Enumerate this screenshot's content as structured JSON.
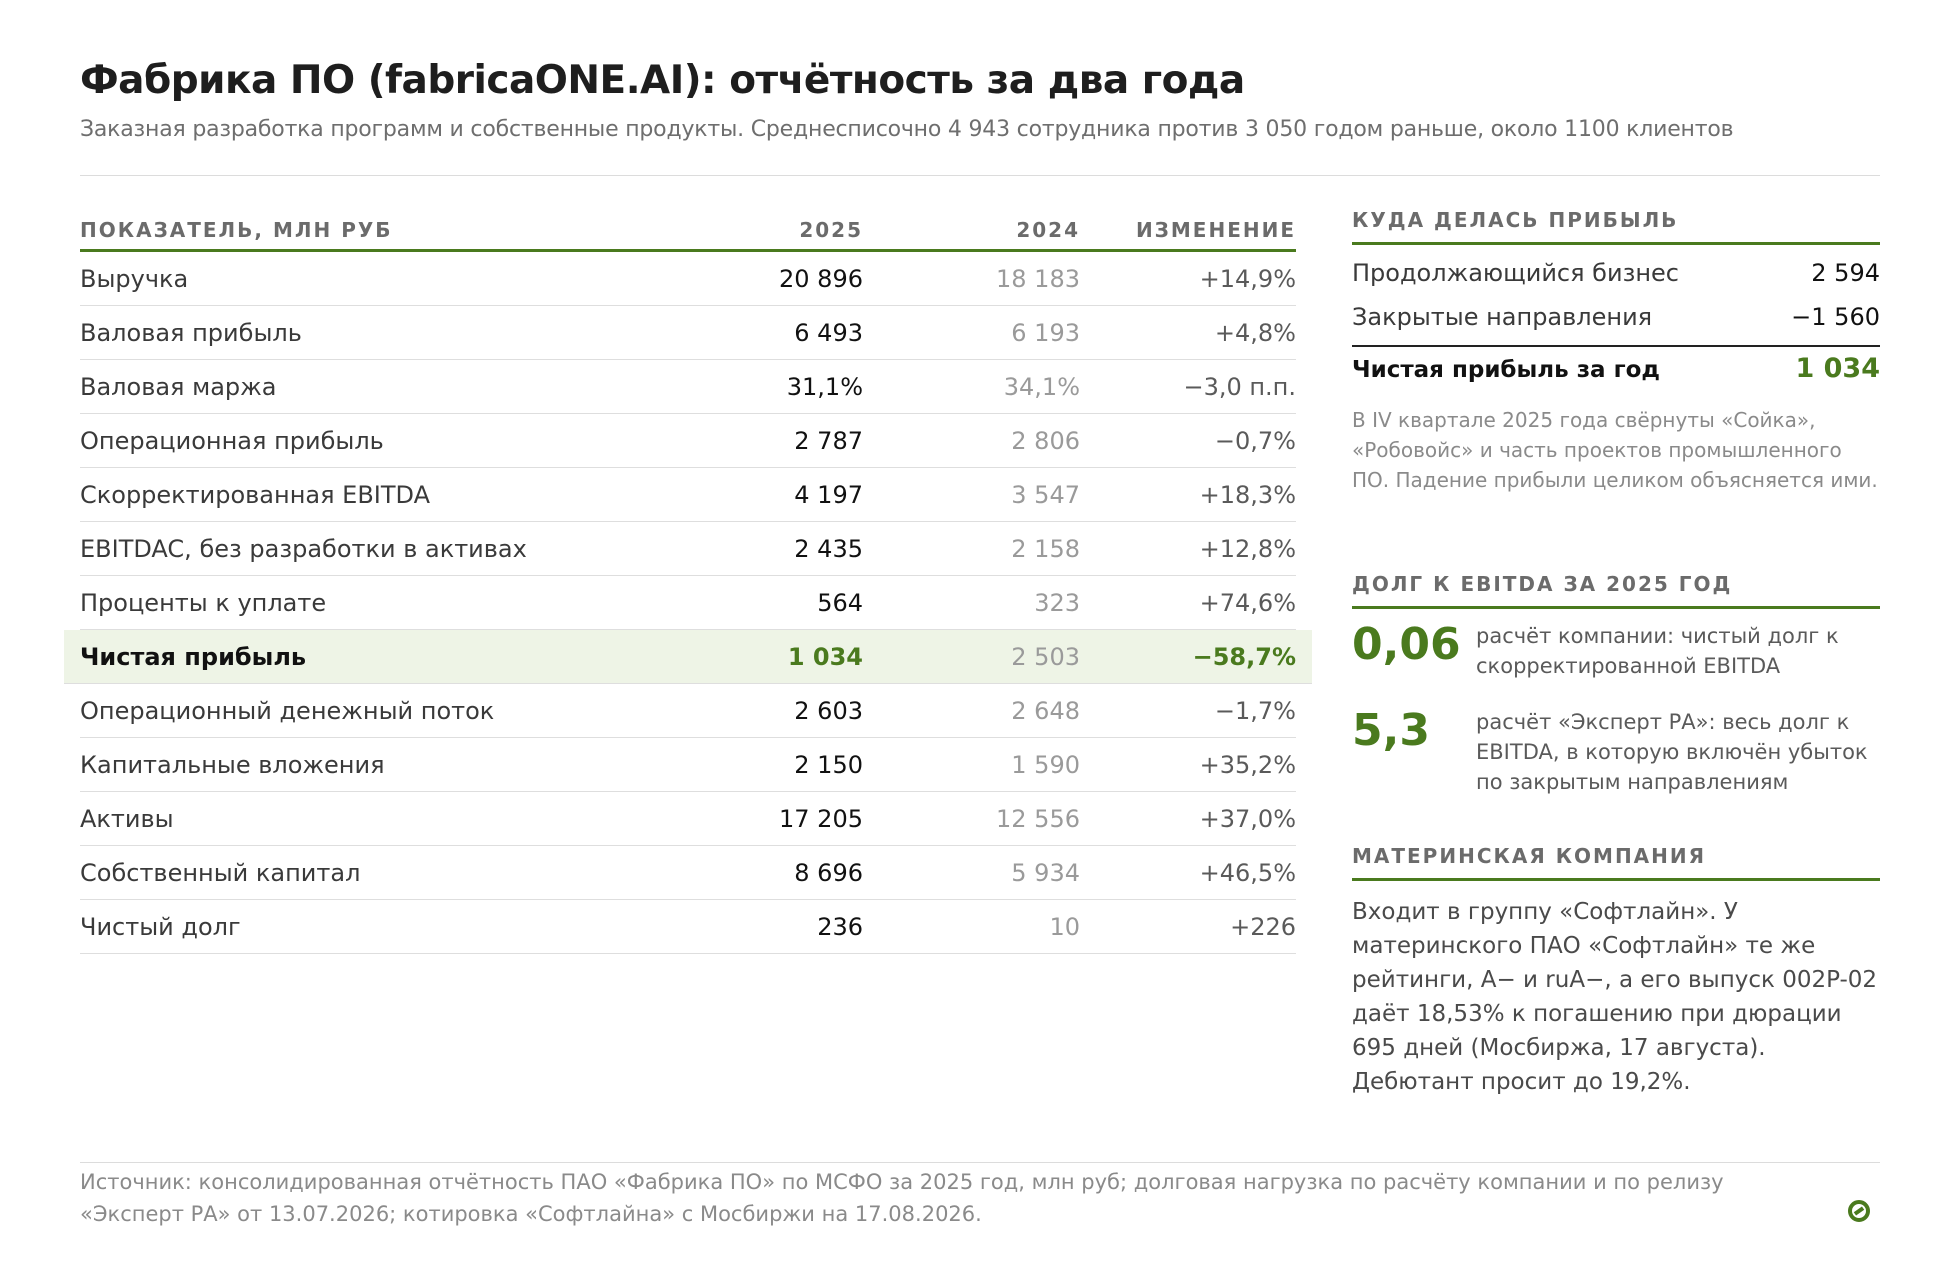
{
  "header": {
    "title": "Фабрика ПО (fabricaONE.AI): отчётность за два года",
    "subtitle": "Заказная разработка программ и собственные продукты. Среднесписочно 4 943 сотрудника против 3 050 годом раньше, около 1100 клиентов"
  },
  "table": {
    "headers": [
      "ПОКАЗАТЕЛЬ, МЛН РУБ",
      "2025",
      "2024",
      "ИЗМЕНЕНИЕ"
    ],
    "rows": [
      {
        "name": "Выручка",
        "y2025": "20 896",
        "y2024": "18 183",
        "change": "+14,9%"
      },
      {
        "name": "Валовая прибыль",
        "y2025": "6 493",
        "y2024": "6 193",
        "change": "+4,8%"
      },
      {
        "name": "Валовая маржа",
        "y2025": "31,1%",
        "y2024": "34,1%",
        "change": "−3,0 п.п."
      },
      {
        "name": "Операционная прибыль",
        "y2025": "2 787",
        "y2024": "2 806",
        "change": "−0,7%"
      },
      {
        "name": "Скорректированная EBITDA",
        "y2025": "4 197",
        "y2024": "3 547",
        "change": "+18,3%"
      },
      {
        "name": "EBITDAC, без разработки в активах",
        "y2025": "2 435",
        "y2024": "2 158",
        "change": "+12,8%"
      },
      {
        "name": "Проценты к уплате",
        "y2025": "564",
        "y2024": "323",
        "change": "+74,6%"
      },
      {
        "name": "Чистая прибыль",
        "y2025": "1 034",
        "y2024": "2 503",
        "change": "−58,7%"
      },
      {
        "name": "Операционный денежный поток",
        "y2025": "2 603",
        "y2024": "2 648",
        "change": "−1,7%"
      },
      {
        "name": "Капитальные вложения",
        "y2025": "2 150",
        "y2024": "1 590",
        "change": "+35,2%"
      },
      {
        "name": "Активы",
        "y2025": "17 205",
        "y2024": "12 556",
        "change": "+37,0%"
      },
      {
        "name": "Собственный капитал",
        "y2025": "8 696",
        "y2024": "5 934",
        "change": "+46,5%"
      },
      {
        "name": "Чистый долг",
        "y2025": "236",
        "y2024": "10",
        "change": "+226"
      }
    ]
  },
  "profit": {
    "heading": "КУДА ДЕЛАСЬ ПРИБЫЛЬ",
    "items": [
      {
        "label": "Продолжающийся бизнес",
        "value": "2 594"
      },
      {
        "label": "Закрытые направления",
        "value": "−1 560"
      }
    ],
    "total_label": "Чистая прибыль за год",
    "total_value": "1 034",
    "note": "В IV квартале 2025 года свёрнуты «Сойка», «Робовойс» и часть проектов промышленного ПО. Падение прибыли целиком объясняется ими."
  },
  "debt": {
    "heading": "ДОЛГ К EBITDA ЗА 2025 ГОД",
    "items": [
      {
        "value": "0,06",
        "desc": "расчёт компании: чистый долг к скорректированной EBITDA"
      },
      {
        "value": "5,3",
        "desc": "расчёт «Эксперт РА»: весь долг к EBITDA, в которую включён убыток по закрытым направлениям"
      }
    ]
  },
  "parent": {
    "heading": "МАТЕРИНСКАЯ КОМПАНИЯ",
    "text": "Входит в группу «Софтлайн». У материнского ПАО «Софтлайн» те же рейтинги, A− и ruA−, а его выпуск 002P-02 даёт 18,53% к погашению при дюрации 695 дней (Мосбиржа, 17 августа). Дебютант просит до 19,2%."
  },
  "footer": {
    "source": "Источник: консолидированная отчётность ПАО «Фабрика ПО» по МСФО за 2025 год, млн руб; долговая нагрузка по расчёту компании и по релизу «Эксперт РА» от 13.07.2026; котировка «Софтлайна» с Мосбиржи на 17.08.2026."
  },
  "colors": {
    "accent": "#4a7a1e",
    "highlight_bg": "#eef4e6"
  }
}
